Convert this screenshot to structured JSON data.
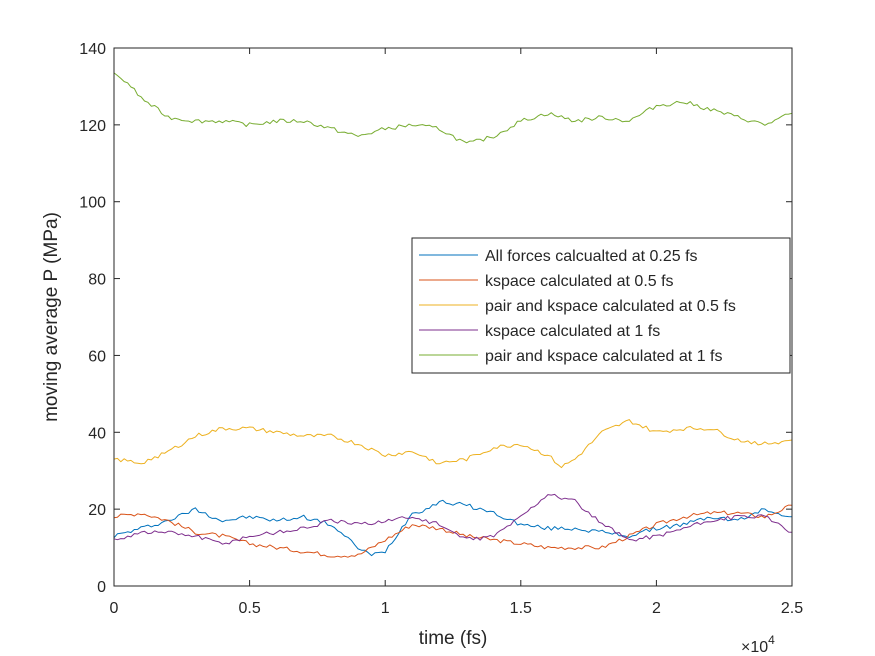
{
  "chart_data": {
    "type": "line",
    "title": "",
    "xlabel": "time (fs)",
    "ylabel": "moving average P (MPa)",
    "x_exponent_label": "×10",
    "x_exponent_power": "4",
    "xlim": [
      0,
      2.5
    ],
    "ylim": [
      0,
      140
    ],
    "xticks": [
      0,
      0.5,
      1,
      1.5,
      2,
      2.5
    ],
    "xtick_labels": [
      "0",
      "0.5",
      "1",
      "1.5",
      "2",
      "2.5"
    ],
    "yticks": [
      0,
      20,
      40,
      60,
      80,
      100,
      120,
      140
    ],
    "ytick_labels": [
      "0",
      "20",
      "40",
      "60",
      "80",
      "100",
      "120",
      "140"
    ],
    "grid": false,
    "legend_position": "center-right",
    "series": [
      {
        "name": "All forces calcualted at 0.25 fs",
        "color": "#0072BD",
        "x": [
          0,
          0.1,
          0.2,
          0.3,
          0.4,
          0.5,
          0.6,
          0.7,
          0.8,
          0.85,
          0.9,
          0.95,
          1.0,
          1.05,
          1.1,
          1.15,
          1.2,
          1.3,
          1.4,
          1.5,
          1.6,
          1.7,
          1.8,
          1.9,
          2.0,
          2.1,
          2.2,
          2.3,
          2.4,
          2.5
        ],
        "y": [
          13,
          15,
          17,
          20,
          17,
          18,
          17,
          18,
          16,
          13,
          10,
          8,
          9,
          14,
          19,
          20,
          22,
          21,
          19,
          16,
          15,
          15,
          14,
          13,
          15,
          16,
          18,
          17,
          20,
          18
        ]
      },
      {
        "name": "kspace calculated at 0.5 fs",
        "color": "#D95319",
        "x": [
          0,
          0.1,
          0.2,
          0.3,
          0.4,
          0.5,
          0.6,
          0.7,
          0.8,
          0.9,
          1.0,
          1.1,
          1.2,
          1.3,
          1.4,
          1.5,
          1.6,
          1.7,
          1.8,
          1.9,
          2.0,
          2.1,
          2.2,
          2.3,
          2.4,
          2.5
        ],
        "y": [
          18,
          19,
          17,
          14,
          13,
          11,
          10,
          9,
          8,
          8,
          12,
          16,
          15,
          13,
          12,
          11,
          10,
          10,
          10,
          13,
          16,
          18,
          19,
          19,
          18,
          21
        ]
      },
      {
        "name": "pair and kspace calculated at 0.5 fs",
        "color": "#EDB120",
        "x": [
          0,
          0.1,
          0.2,
          0.3,
          0.4,
          0.5,
          0.6,
          0.7,
          0.8,
          0.9,
          1.0,
          1.1,
          1.2,
          1.3,
          1.4,
          1.5,
          1.6,
          1.65,
          1.7,
          1.8,
          1.9,
          2.0,
          2.1,
          2.2,
          2.3,
          2.4,
          2.5
        ],
        "y": [
          33,
          32,
          35,
          39,
          41,
          41,
          40,
          39,
          39,
          37,
          34,
          35,
          32,
          33,
          36,
          37,
          34,
          31,
          33,
          40,
          43,
          40,
          41,
          41,
          38,
          37,
          38
        ]
      },
      {
        "name": "kspace calculated at 1 fs",
        "color": "#7E2F8E",
        "x": [
          0,
          0.1,
          0.2,
          0.3,
          0.4,
          0.5,
          0.6,
          0.7,
          0.8,
          0.9,
          1.0,
          1.1,
          1.2,
          1.3,
          1.4,
          1.5,
          1.6,
          1.7,
          1.8,
          1.9,
          2.0,
          2.1,
          2.2,
          2.3,
          2.4,
          2.5
        ],
        "y": [
          12,
          14,
          14,
          13,
          11,
          13,
          14,
          15,
          17,
          16,
          17,
          18,
          16,
          12,
          13,
          18,
          24,
          22,
          16,
          12,
          13,
          15,
          17,
          18,
          18,
          14
        ]
      },
      {
        "name": "pair and kspace calculated at 1 fs",
        "color": "#77AC30",
        "x": [
          0,
          0.05,
          0.1,
          0.2,
          0.3,
          0.4,
          0.5,
          0.6,
          0.7,
          0.8,
          0.9,
          1.0,
          1.1,
          1.2,
          1.3,
          1.4,
          1.5,
          1.6,
          1.7,
          1.8,
          1.9,
          2.0,
          2.1,
          2.2,
          2.3,
          2.4,
          2.5
        ],
        "y": [
          133,
          131,
          127,
          122,
          121,
          121,
          120,
          121,
          121,
          119,
          117,
          119,
          120,
          119,
          115,
          117,
          121,
          123,
          121,
          122,
          121,
          125,
          126,
          124,
          122,
          120,
          123
        ]
      }
    ]
  }
}
